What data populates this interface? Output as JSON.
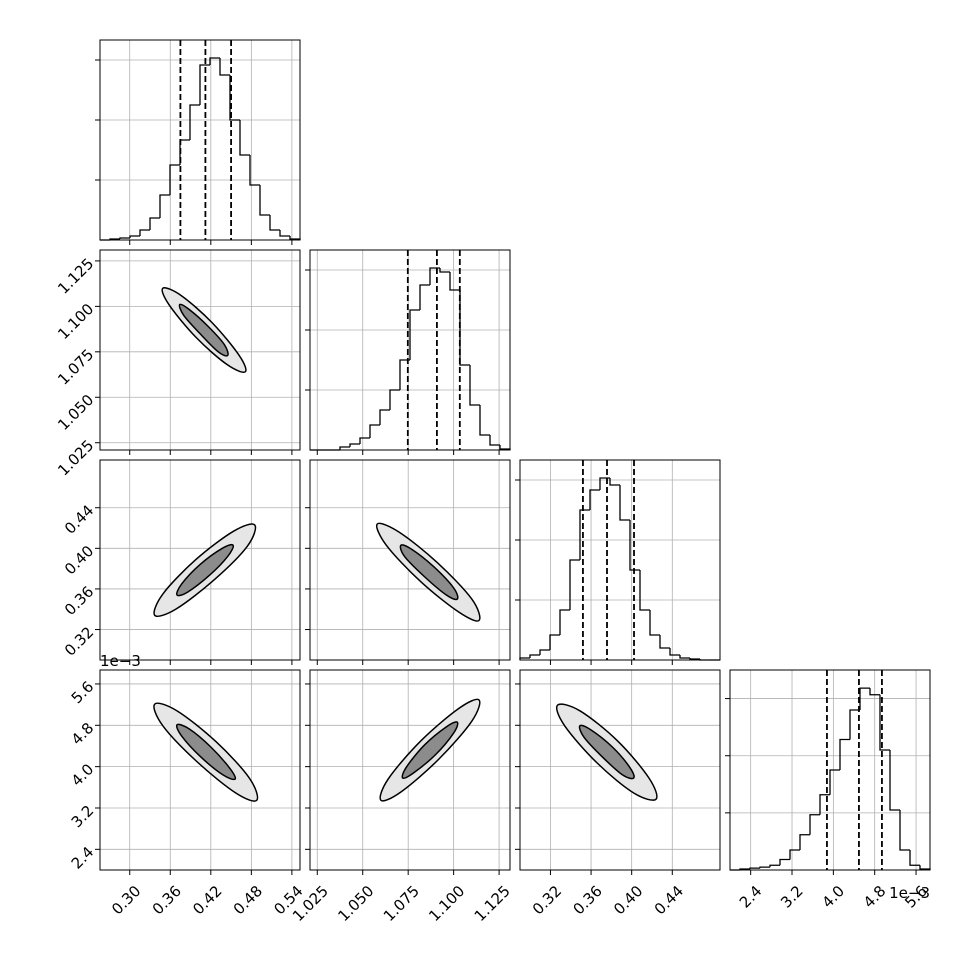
{
  "chart_data": {
    "type": "corner",
    "grid": true,
    "line_color": "#000000",
    "grid_color": "#b0b0b0",
    "contour_fills": [
      "#e6e6e6",
      "#8c8c8c"
    ],
    "params": [
      {
        "lim": [
          0.256,
          0.552
        ],
        "ticks": [
          {
            "value": 0.3,
            "label": "0.30"
          },
          0.36,
          0.42,
          0.48,
          0.54
        ]
      },
      {
        "lim": [
          1.021,
          1.131
        ],
        "ticks": [
          1.025,
          {
            "value": 1.05,
            "label": "1.050"
          },
          1.075,
          {
            "value": 1.1,
            "label": "1.100"
          },
          1.125
        ]
      },
      {
        "lim": [
          0.29,
          0.487
        ],
        "ticks": [
          0.32,
          0.36,
          {
            "value": 0.4,
            "label": "0.40"
          },
          0.44
        ]
      },
      {
        "lim": [
          2.0,
          5.87
        ],
        "ticks": [
          2.4,
          3.2,
          {
            "value": 4.0,
            "label": "4.0"
          },
          4.8,
          5.6
        ],
        "offset_text": "1e−3"
      }
    ],
    "histograms": [
      {
        "bins": [
          0.256,
          0.2708,
          0.2856,
          0.3004,
          0.3152,
          0.33,
          0.3448,
          0.3596,
          0.3744,
          0.3892,
          0.404,
          0.4188,
          0.4336,
          0.4484,
          0.4632,
          0.478,
          0.4928,
          0.5076,
          0.5224,
          0.5372,
          0.552
        ],
        "counts": [
          0,
          1,
          2,
          4,
          10,
          22,
          45,
          75,
          100,
          135,
          175,
          182,
          165,
          120,
          85,
          55,
          25,
          10,
          4,
          1
        ],
        "ylim": [
          0,
          200
        ],
        "yticks": [
          60,
          120,
          180
        ],
        "quantiles": [
          0.375,
          0.412,
          0.45
        ]
      },
      {
        "bins": [
          1.021,
          1.0265,
          1.032,
          1.0375,
          1.043,
          1.0485,
          1.054,
          1.0595,
          1.065,
          1.0705,
          1.076,
          1.0815,
          1.087,
          1.0925,
          1.098,
          1.1035,
          1.109,
          1.1145,
          1.12,
          1.1255,
          1.131
        ],
        "counts": [
          0,
          0,
          0,
          3,
          6,
          12,
          25,
          40,
          60,
          90,
          140,
          165,
          182,
          178,
          160,
          85,
          45,
          15,
          5,
          1
        ],
        "ylim": [
          0,
          200
        ],
        "yticks": [
          60,
          120,
          180
        ],
        "quantiles": [
          1.0748,
          1.0908,
          1.1034
        ]
      },
      {
        "bins": [
          0.29,
          0.29985,
          0.3097,
          0.31955,
          0.3294,
          0.33925,
          0.3491,
          0.35895,
          0.3688,
          0.37865,
          0.3885,
          0.39835,
          0.4082,
          0.41805,
          0.4279,
          0.43775,
          0.4476,
          0.45745,
          0.4673,
          0.47715,
          0.487
        ],
        "counts": [
          2,
          5,
          10,
          25,
          50,
          100,
          150,
          170,
          182,
          175,
          140,
          90,
          50,
          25,
          12,
          5,
          2,
          1,
          0,
          0
        ],
        "ylim": [
          0,
          200
        ],
        "yticks": [
          60,
          120,
          180
        ],
        "quantiles": [
          0.352,
          0.3757,
          0.4023
        ]
      },
      {
        "bins": [
          2.0,
          2.1935,
          2.387,
          2.5805,
          2.774,
          2.9675,
          3.161,
          3.3545,
          3.548,
          3.7415,
          3.935,
          4.1285,
          4.322,
          4.5155,
          4.709,
          4.9025,
          5.096,
          5.2895,
          5.483,
          5.6765,
          5.87
        ],
        "counts": [
          0,
          1,
          2,
          3,
          5,
          11,
          21,
          37,
          58,
          79,
          105,
          137,
          168,
          191,
          184,
          126,
          63,
          21,
          5,
          1
        ],
        "ylim": [
          0,
          210
        ],
        "yticks": [
          60,
          120,
          180
        ],
        "quantiles": [
          3.876,
          4.495,
          4.94
        ]
      }
    ],
    "pairs": [
      {
        "contours": [
          {
            "x": [
              0.471,
              0.444,
              0.398,
              0.358,
              0.349,
              0.376,
              0.422,
              0.462
            ],
            "y": [
              1.064,
              1.068,
              1.083,
              1.101,
              1.11,
              1.106,
              1.091,
              1.073
            ]
          },
          {
            "x": [
              0.445,
              0.431,
              0.404,
              0.38,
              0.374,
              0.389,
              0.416,
              0.44
            ],
            "y": [
              1.073,
              1.075,
              1.085,
              1.095,
              1.101,
              1.098,
              1.089,
              1.079
            ]
          }
        ]
      },
      {
        "contours": [
          {
            "x": [
              0.485,
              0.474,
              0.425,
              0.368,
              0.337,
              0.349,
              0.398,
              0.454
            ],
            "y": [
              0.423,
              0.402,
              0.369,
              0.34,
              0.334,
              0.355,
              0.389,
              0.417
            ]
          },
          {
            "x": [
              0.453,
              0.445,
              0.419,
              0.386,
              0.37,
              0.377,
              0.404,
              0.437
            ],
            "y": [
              0.403,
              0.392,
              0.374,
              0.357,
              0.354,
              0.365,
              0.384,
              0.4
            ]
          }
        ]
      },
      {
        "contours": [
          {
            "x": [
              1.114,
              1.103,
              1.082,
              1.063,
              1.058,
              1.07,
              1.091,
              1.11
            ],
            "y": [
              0.329,
              0.337,
              0.367,
              0.403,
              0.424,
              0.416,
              0.386,
              0.35
            ]
          },
          {
            "x": [
              1.102,
              1.096,
              1.084,
              1.073,
              1.071,
              1.077,
              1.089,
              1.1
            ],
            "y": [
              0.35,
              0.354,
              0.372,
              0.392,
              0.403,
              0.399,
              0.382,
              0.361
            ]
          }
        ]
      },
      {
        "contours": [
          {
            "x": [
              0.488,
              0.457,
              0.4,
              0.349,
              0.337,
              0.37,
              0.428,
              0.477
            ],
            "y": [
              3.35,
              3.49,
              4.09,
              4.79,
              5.21,
              5.08,
              4.48,
              3.78
            ]
          },
          {
            "x": [
              0.456,
              0.438,
              0.405,
              0.377,
              0.37,
              0.388,
              0.42,
              0.448
            ],
            "y": [
              3.76,
              3.84,
              4.19,
              4.59,
              4.81,
              4.73,
              4.38,
              3.97
            ]
          }
        ]
      },
      {
        "contours": [
          {
            "x": [
              1.114,
              1.11,
              1.092,
              1.071,
              1.06,
              1.064,
              1.082,
              1.103
            ],
            "y": [
              5.29,
              4.88,
              4.15,
              3.51,
              3.35,
              3.76,
              4.5,
              5.13
            ]
          },
          {
            "x": [
              1.102,
              1.1,
              1.09,
              1.078,
              1.072,
              1.074,
              1.084,
              1.096
            ],
            "y": [
              4.86,
              4.65,
              4.23,
              3.88,
              3.78,
              3.99,
              4.42,
              4.77
            ]
          }
        ]
      },
      {
        "contours": [
          {
            "x": [
              0.424,
              0.402,
              0.366,
              0.334,
              0.327,
              0.349,
              0.386,
              0.417
            ],
            "y": [
              3.37,
              3.49,
              4.07,
              4.79,
              5.19,
              5.08,
              4.5,
              3.78
            ]
          },
          {
            "x": [
              0.402,
              0.391,
              0.371,
              0.353,
              0.349,
              0.36,
              0.381,
              0.398
            ],
            "y": [
              3.78,
              3.84,
              4.19,
              4.57,
              4.79,
              4.71,
              4.38,
              3.99
            ]
          }
        ]
      }
    ]
  }
}
